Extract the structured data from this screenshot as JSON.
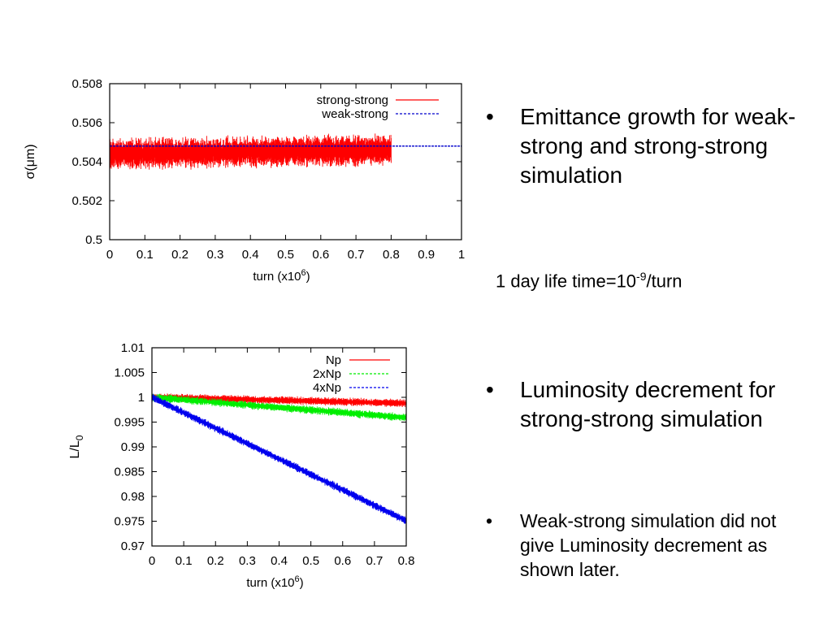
{
  "chart_data": [
    {
      "type": "line",
      "ylabel": "σ(μm)",
      "xlabel": "turn (x10^6)",
      "xlabel_base": "turn (x10",
      "xlabel_sup": "6",
      "xlabel_tail": ")",
      "xlim": [
        0,
        1
      ],
      "ylim": [
        0.5,
        0.508
      ],
      "x_ticks": [
        0,
        0.1,
        0.2,
        0.3,
        0.4,
        0.5,
        0.6,
        0.7,
        0.8,
        0.9,
        1
      ],
      "x_tick_labels": [
        "0",
        "0.1",
        "0.2",
        "0.3",
        "0.4",
        "0.5",
        "0.6",
        "0.7",
        "0.8",
        "0.9",
        "1"
      ],
      "y_ticks": [
        0.5,
        0.502,
        0.504,
        0.506,
        0.508
      ],
      "y_tick_labels": [
        "0.5",
        "0.502",
        "0.504",
        "0.506",
        "0.508"
      ],
      "legend_position": "top-right",
      "series": [
        {
          "name": "strong-strong",
          "color": "#ff0000",
          "style": "noisy band",
          "x": [
            0,
            0.8
          ],
          "center": [
            0.5044,
            0.5046
          ],
          "noise_halfwidth": 0.0009
        },
        {
          "name": "weak-strong",
          "color": "#0000cc",
          "style": "dashed",
          "x": [
            0,
            1
          ],
          "values": [
            0.5048,
            0.5048
          ]
        }
      ]
    },
    {
      "type": "line",
      "ylabel": "L/L0",
      "ylabel_base": "L/L",
      "ylabel_sub": "0",
      "xlabel_base": "turn (x10",
      "xlabel_sup": "6",
      "xlabel_tail": ")",
      "xlim": [
        0,
        0.8
      ],
      "ylim": [
        0.97,
        1.01
      ],
      "x_ticks": [
        0,
        0.1,
        0.2,
        0.3,
        0.4,
        0.5,
        0.6,
        0.7,
        0.8
      ],
      "x_tick_labels": [
        "0",
        "0.1",
        "0.2",
        "0.3",
        "0.4",
        "0.5",
        "0.6",
        "0.7",
        "0.8"
      ],
      "y_ticks": [
        0.97,
        0.975,
        0.98,
        0.985,
        0.99,
        0.995,
        1,
        1.005,
        1.01
      ],
      "y_tick_labels": [
        "0.97",
        "0.975",
        "0.98",
        "0.985",
        "0.99",
        "0.995",
        "1",
        "1.005",
        "1.01"
      ],
      "legend_position": "top-right",
      "series": [
        {
          "name": "Np",
          "color": "#ff0000",
          "style": "noisy band",
          "x": [
            0,
            0.8
          ],
          "values": [
            1.0,
            0.9988
          ],
          "noise_halfwidth": 0.0009
        },
        {
          "name": "2xNp",
          "color": "#00ee00",
          "style": "noisy band",
          "x": [
            0,
            0.8
          ],
          "values": [
            1.0,
            0.9959
          ],
          "noise_halfwidth": 0.0009
        },
        {
          "name": "4xNp",
          "color": "#0000ee",
          "style": "noisy band",
          "x": [
            0,
            0.8
          ],
          "values": [
            1.0,
            0.9751
          ],
          "noise_halfwidth": 0.0009
        }
      ]
    }
  ],
  "bullets": {
    "emittance_text": "Emittance growth for weak-strong and strong-strong simulation",
    "lifetime_base": "1 day life time=10",
    "lifetime_exp": "-9",
    "lifetime_tail": "/turn",
    "luminosity_text": "Luminosity decrement for strong-strong simulation",
    "weakstrong_text": "Weak-strong simulation did not give Luminosity decrement as shown later.",
    "bullet_glyph": "•"
  }
}
